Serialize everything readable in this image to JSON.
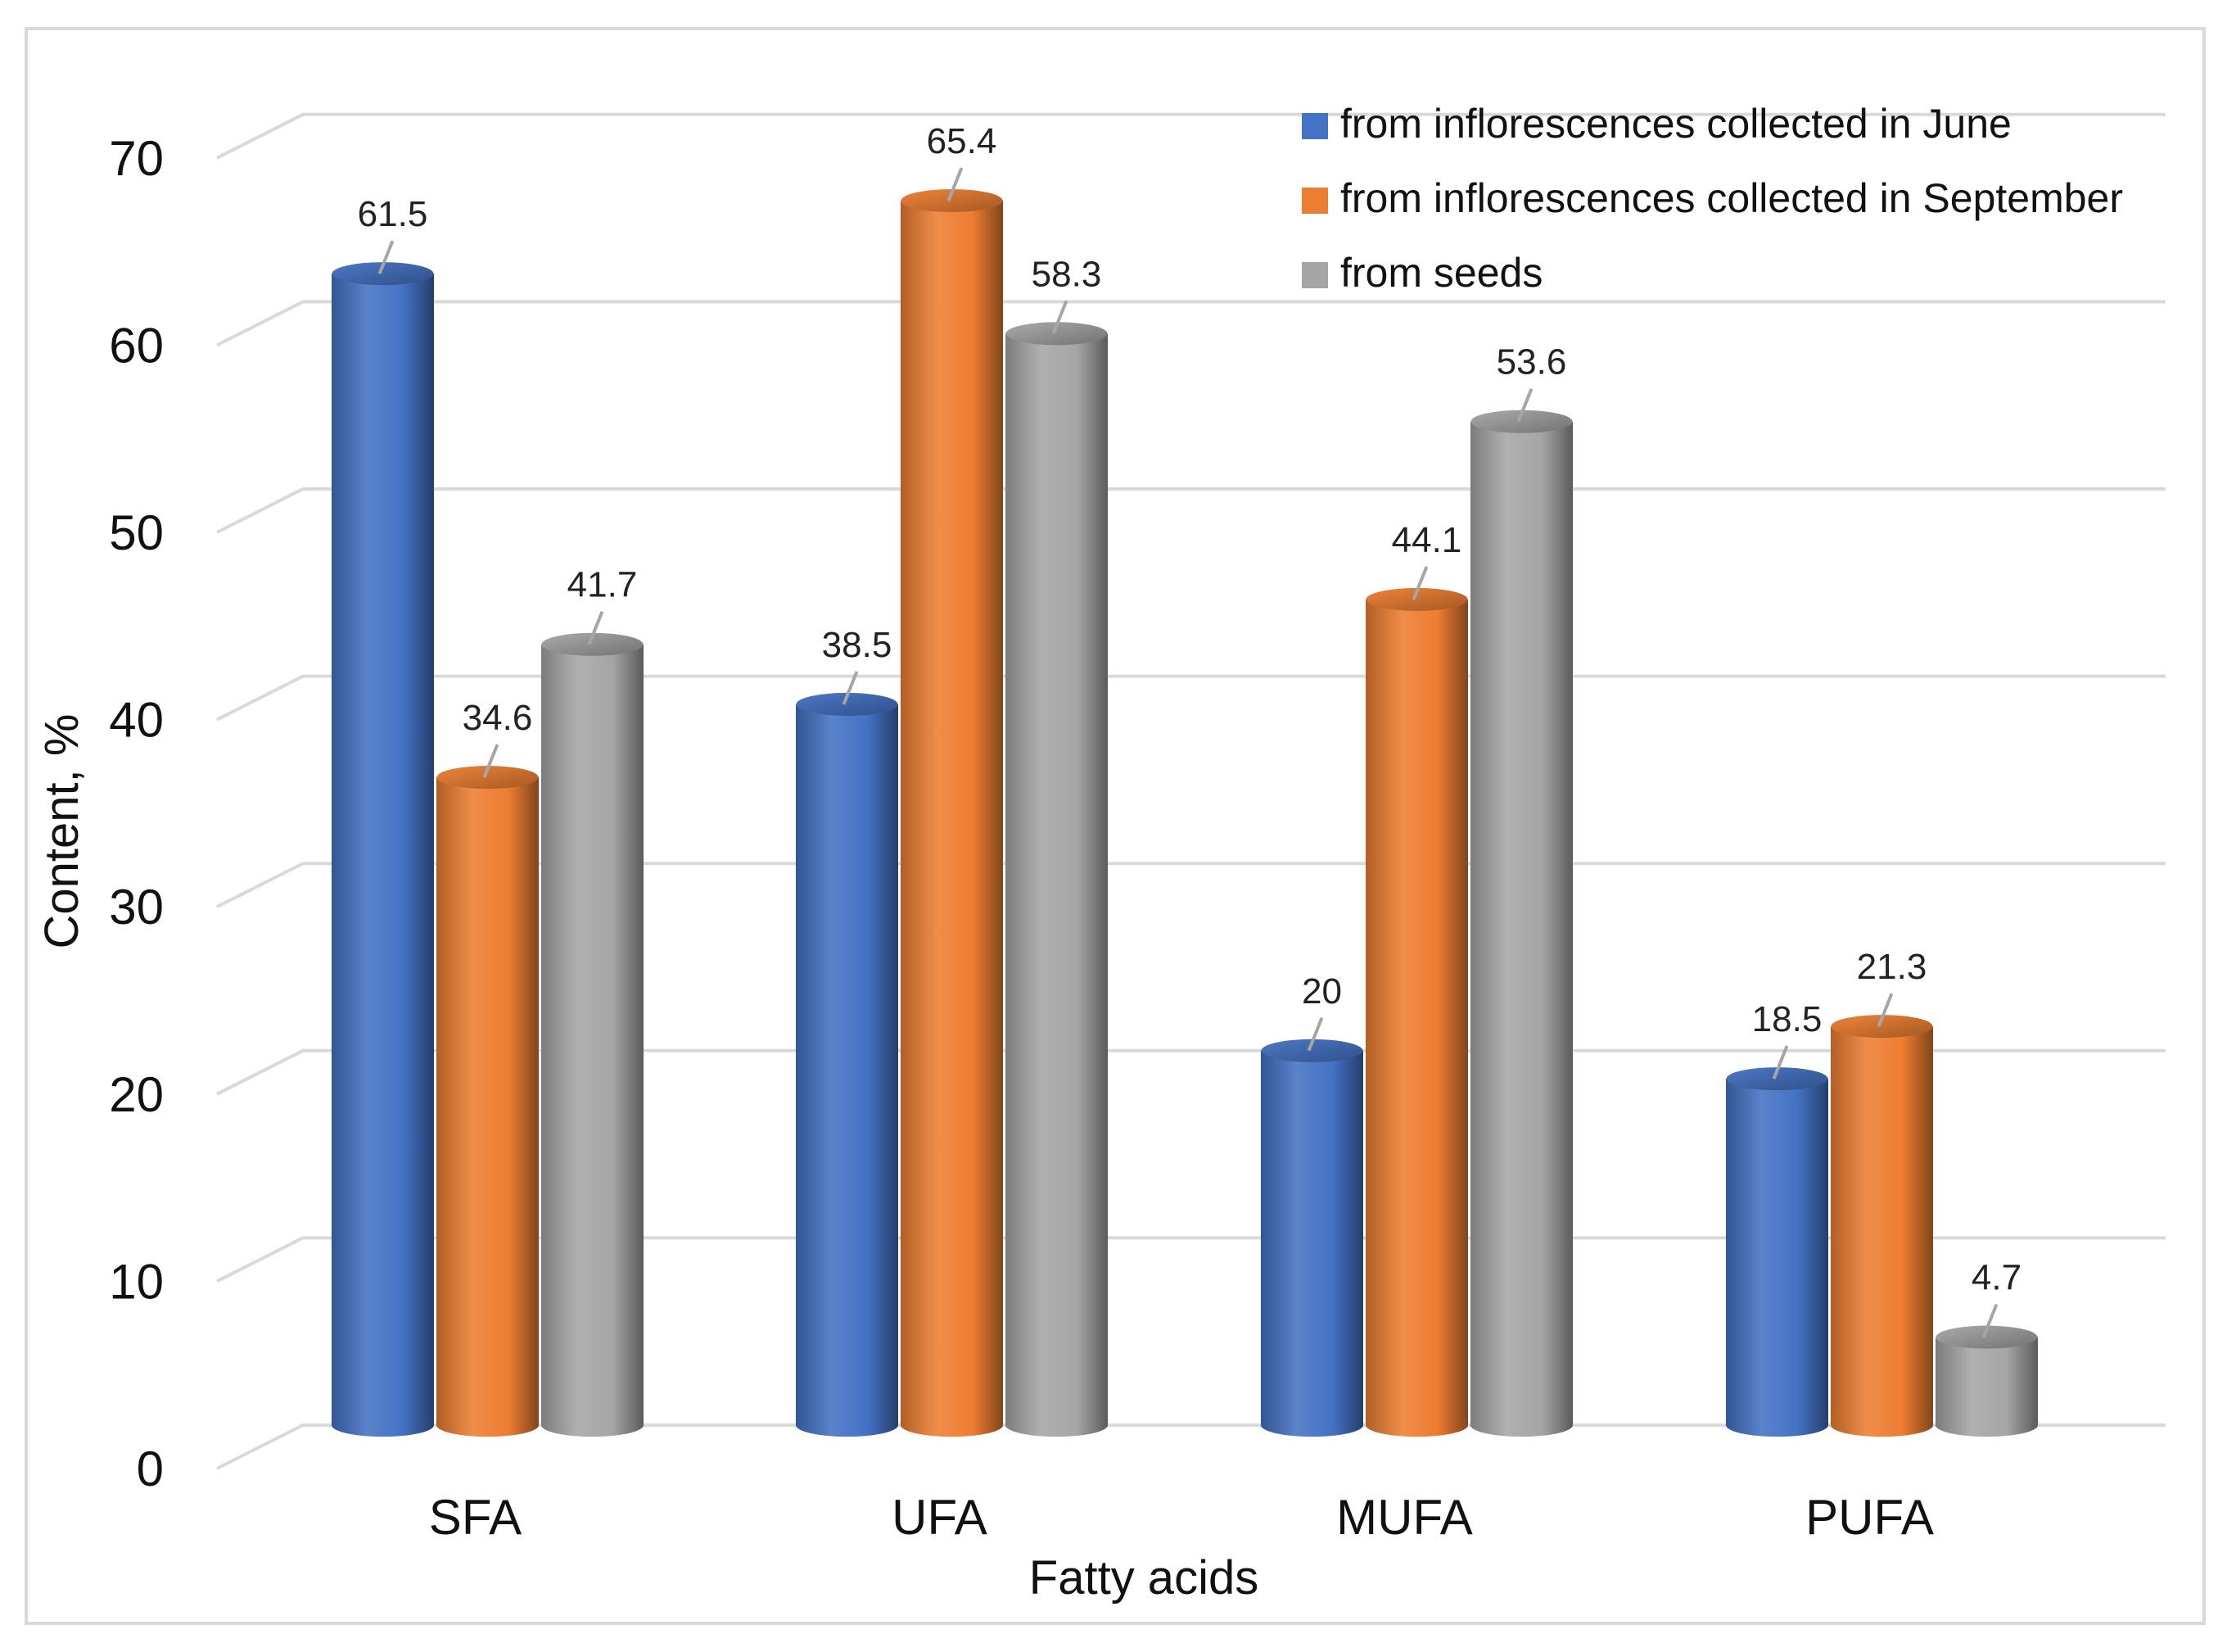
{
  "chart_data": {
    "type": "bar",
    "style": "3d-cylinder",
    "title": "",
    "xlabel": "Fatty acids",
    "ylabel": "Content, %",
    "ylim": [
      0,
      70
    ],
    "yticks": [
      0,
      10,
      20,
      30,
      40,
      50,
      60,
      70
    ],
    "grid": true,
    "legend_position": "top-right",
    "categories": [
      "SFA",
      "UFA",
      "MUFA",
      "PUFA"
    ],
    "series": [
      {
        "name": "from inflorescences collected in June",
        "color": "#4472c4",
        "values": [
          61.5,
          38.5,
          20,
          18.5
        ],
        "labels": [
          "61.5",
          "38.5",
          "20",
          "18.5"
        ]
      },
      {
        "name": "from inflorescences collected in September",
        "color": "#ed7d31",
        "values": [
          34.6,
          65.4,
          44.1,
          21.3
        ],
        "labels": [
          "34.6",
          "65.4",
          "44.1",
          "21.3"
        ]
      },
      {
        "name": "from seeds",
        "color": "#a5a5a5",
        "values": [
          41.7,
          58.3,
          53.6,
          4.7
        ],
        "labels": [
          "41.7",
          "58.3",
          "53.6",
          "4.7"
        ]
      }
    ]
  }
}
